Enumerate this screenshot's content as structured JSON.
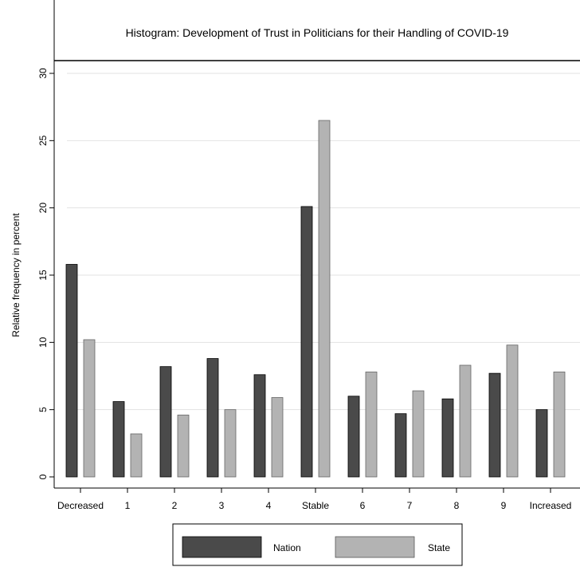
{
  "chart_data": {
    "type": "bar",
    "title": "Histogram: Development of Trust in Politicians for their Handling of COVID-19",
    "xlabel": "",
    "ylabel": "Relative frequency in percent",
    "ylim": [
      0,
      30
    ],
    "yticks": [
      "0",
      "5",
      "10",
      "15",
      "20",
      "25",
      "30"
    ],
    "categories": [
      "Decreased",
      "1",
      "2",
      "3",
      "4",
      "Stable",
      "6",
      "7",
      "8",
      "9",
      "Increased"
    ],
    "series": [
      {
        "name": "Nation",
        "color": "#4a4a4a",
        "values": [
          15.8,
          5.6,
          8.2,
          8.8,
          7.6,
          20.1,
          6.0,
          4.7,
          5.8,
          7.7,
          5.0
        ]
      },
      {
        "name": "State",
        "color": "#b3b3b3",
        "values": [
          10.2,
          3.2,
          4.6,
          5.0,
          5.9,
          26.5,
          7.8,
          6.4,
          8.3,
          9.8,
          7.8
        ]
      }
    ],
    "grid": true,
    "legend_position": "bottom"
  }
}
